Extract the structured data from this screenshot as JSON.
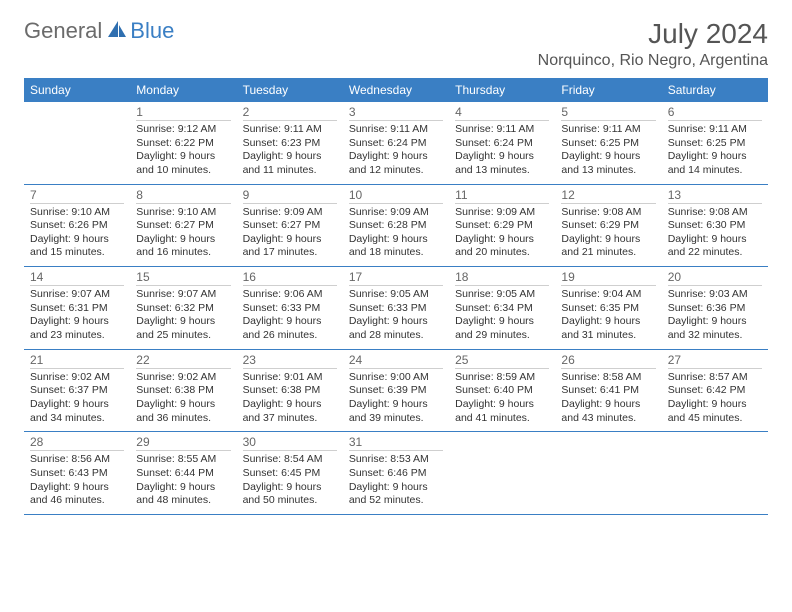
{
  "brand": {
    "part1": "General",
    "part2": "Blue"
  },
  "title": "July 2024",
  "location": "Norquinco, Rio Negro, Argentina",
  "colors": {
    "header_bg": "#3a7fc4",
    "header_text": "#ffffff",
    "daynum_color": "#666666",
    "text_color": "#333333",
    "divider": "#cfcfcf",
    "week_border": "#3a7fc4",
    "background": "#ffffff"
  },
  "typography": {
    "title_fontsize": 28,
    "location_fontsize": 16,
    "dayheader_fontsize": 12,
    "daynum_fontsize": 12,
    "detail_fontsize": 10.5
  },
  "day_labels": [
    "Sunday",
    "Monday",
    "Tuesday",
    "Wednesday",
    "Thursday",
    "Friday",
    "Saturday"
  ],
  "weeks": [
    [
      {
        "n": "",
        "sr": "",
        "ss": "",
        "dl": ""
      },
      {
        "n": "1",
        "sr": "Sunrise: 9:12 AM",
        "ss": "Sunset: 6:22 PM",
        "dl": "Daylight: 9 hours and 10 minutes."
      },
      {
        "n": "2",
        "sr": "Sunrise: 9:11 AM",
        "ss": "Sunset: 6:23 PM",
        "dl": "Daylight: 9 hours and 11 minutes."
      },
      {
        "n": "3",
        "sr": "Sunrise: 9:11 AM",
        "ss": "Sunset: 6:24 PM",
        "dl": "Daylight: 9 hours and 12 minutes."
      },
      {
        "n": "4",
        "sr": "Sunrise: 9:11 AM",
        "ss": "Sunset: 6:24 PM",
        "dl": "Daylight: 9 hours and 13 minutes."
      },
      {
        "n": "5",
        "sr": "Sunrise: 9:11 AM",
        "ss": "Sunset: 6:25 PM",
        "dl": "Daylight: 9 hours and 13 minutes."
      },
      {
        "n": "6",
        "sr": "Sunrise: 9:11 AM",
        "ss": "Sunset: 6:25 PM",
        "dl": "Daylight: 9 hours and 14 minutes."
      }
    ],
    [
      {
        "n": "7",
        "sr": "Sunrise: 9:10 AM",
        "ss": "Sunset: 6:26 PM",
        "dl": "Daylight: 9 hours and 15 minutes."
      },
      {
        "n": "8",
        "sr": "Sunrise: 9:10 AM",
        "ss": "Sunset: 6:27 PM",
        "dl": "Daylight: 9 hours and 16 minutes."
      },
      {
        "n": "9",
        "sr": "Sunrise: 9:09 AM",
        "ss": "Sunset: 6:27 PM",
        "dl": "Daylight: 9 hours and 17 minutes."
      },
      {
        "n": "10",
        "sr": "Sunrise: 9:09 AM",
        "ss": "Sunset: 6:28 PM",
        "dl": "Daylight: 9 hours and 18 minutes."
      },
      {
        "n": "11",
        "sr": "Sunrise: 9:09 AM",
        "ss": "Sunset: 6:29 PM",
        "dl": "Daylight: 9 hours and 20 minutes."
      },
      {
        "n": "12",
        "sr": "Sunrise: 9:08 AM",
        "ss": "Sunset: 6:29 PM",
        "dl": "Daylight: 9 hours and 21 minutes."
      },
      {
        "n": "13",
        "sr": "Sunrise: 9:08 AM",
        "ss": "Sunset: 6:30 PM",
        "dl": "Daylight: 9 hours and 22 minutes."
      }
    ],
    [
      {
        "n": "14",
        "sr": "Sunrise: 9:07 AM",
        "ss": "Sunset: 6:31 PM",
        "dl": "Daylight: 9 hours and 23 minutes."
      },
      {
        "n": "15",
        "sr": "Sunrise: 9:07 AM",
        "ss": "Sunset: 6:32 PM",
        "dl": "Daylight: 9 hours and 25 minutes."
      },
      {
        "n": "16",
        "sr": "Sunrise: 9:06 AM",
        "ss": "Sunset: 6:33 PM",
        "dl": "Daylight: 9 hours and 26 minutes."
      },
      {
        "n": "17",
        "sr": "Sunrise: 9:05 AM",
        "ss": "Sunset: 6:33 PM",
        "dl": "Daylight: 9 hours and 28 minutes."
      },
      {
        "n": "18",
        "sr": "Sunrise: 9:05 AM",
        "ss": "Sunset: 6:34 PM",
        "dl": "Daylight: 9 hours and 29 minutes."
      },
      {
        "n": "19",
        "sr": "Sunrise: 9:04 AM",
        "ss": "Sunset: 6:35 PM",
        "dl": "Daylight: 9 hours and 31 minutes."
      },
      {
        "n": "20",
        "sr": "Sunrise: 9:03 AM",
        "ss": "Sunset: 6:36 PM",
        "dl": "Daylight: 9 hours and 32 minutes."
      }
    ],
    [
      {
        "n": "21",
        "sr": "Sunrise: 9:02 AM",
        "ss": "Sunset: 6:37 PM",
        "dl": "Daylight: 9 hours and 34 minutes."
      },
      {
        "n": "22",
        "sr": "Sunrise: 9:02 AM",
        "ss": "Sunset: 6:38 PM",
        "dl": "Daylight: 9 hours and 36 minutes."
      },
      {
        "n": "23",
        "sr": "Sunrise: 9:01 AM",
        "ss": "Sunset: 6:38 PM",
        "dl": "Daylight: 9 hours and 37 minutes."
      },
      {
        "n": "24",
        "sr": "Sunrise: 9:00 AM",
        "ss": "Sunset: 6:39 PM",
        "dl": "Daylight: 9 hours and 39 minutes."
      },
      {
        "n": "25",
        "sr": "Sunrise: 8:59 AM",
        "ss": "Sunset: 6:40 PM",
        "dl": "Daylight: 9 hours and 41 minutes."
      },
      {
        "n": "26",
        "sr": "Sunrise: 8:58 AM",
        "ss": "Sunset: 6:41 PM",
        "dl": "Daylight: 9 hours and 43 minutes."
      },
      {
        "n": "27",
        "sr": "Sunrise: 8:57 AM",
        "ss": "Sunset: 6:42 PM",
        "dl": "Daylight: 9 hours and 45 minutes."
      }
    ],
    [
      {
        "n": "28",
        "sr": "Sunrise: 8:56 AM",
        "ss": "Sunset: 6:43 PM",
        "dl": "Daylight: 9 hours and 46 minutes."
      },
      {
        "n": "29",
        "sr": "Sunrise: 8:55 AM",
        "ss": "Sunset: 6:44 PM",
        "dl": "Daylight: 9 hours and 48 minutes."
      },
      {
        "n": "30",
        "sr": "Sunrise: 8:54 AM",
        "ss": "Sunset: 6:45 PM",
        "dl": "Daylight: 9 hours and 50 minutes."
      },
      {
        "n": "31",
        "sr": "Sunrise: 8:53 AM",
        "ss": "Sunset: 6:46 PM",
        "dl": "Daylight: 9 hours and 52 minutes."
      },
      {
        "n": "",
        "sr": "",
        "ss": "",
        "dl": ""
      },
      {
        "n": "",
        "sr": "",
        "ss": "",
        "dl": ""
      },
      {
        "n": "",
        "sr": "",
        "ss": "",
        "dl": ""
      }
    ]
  ]
}
